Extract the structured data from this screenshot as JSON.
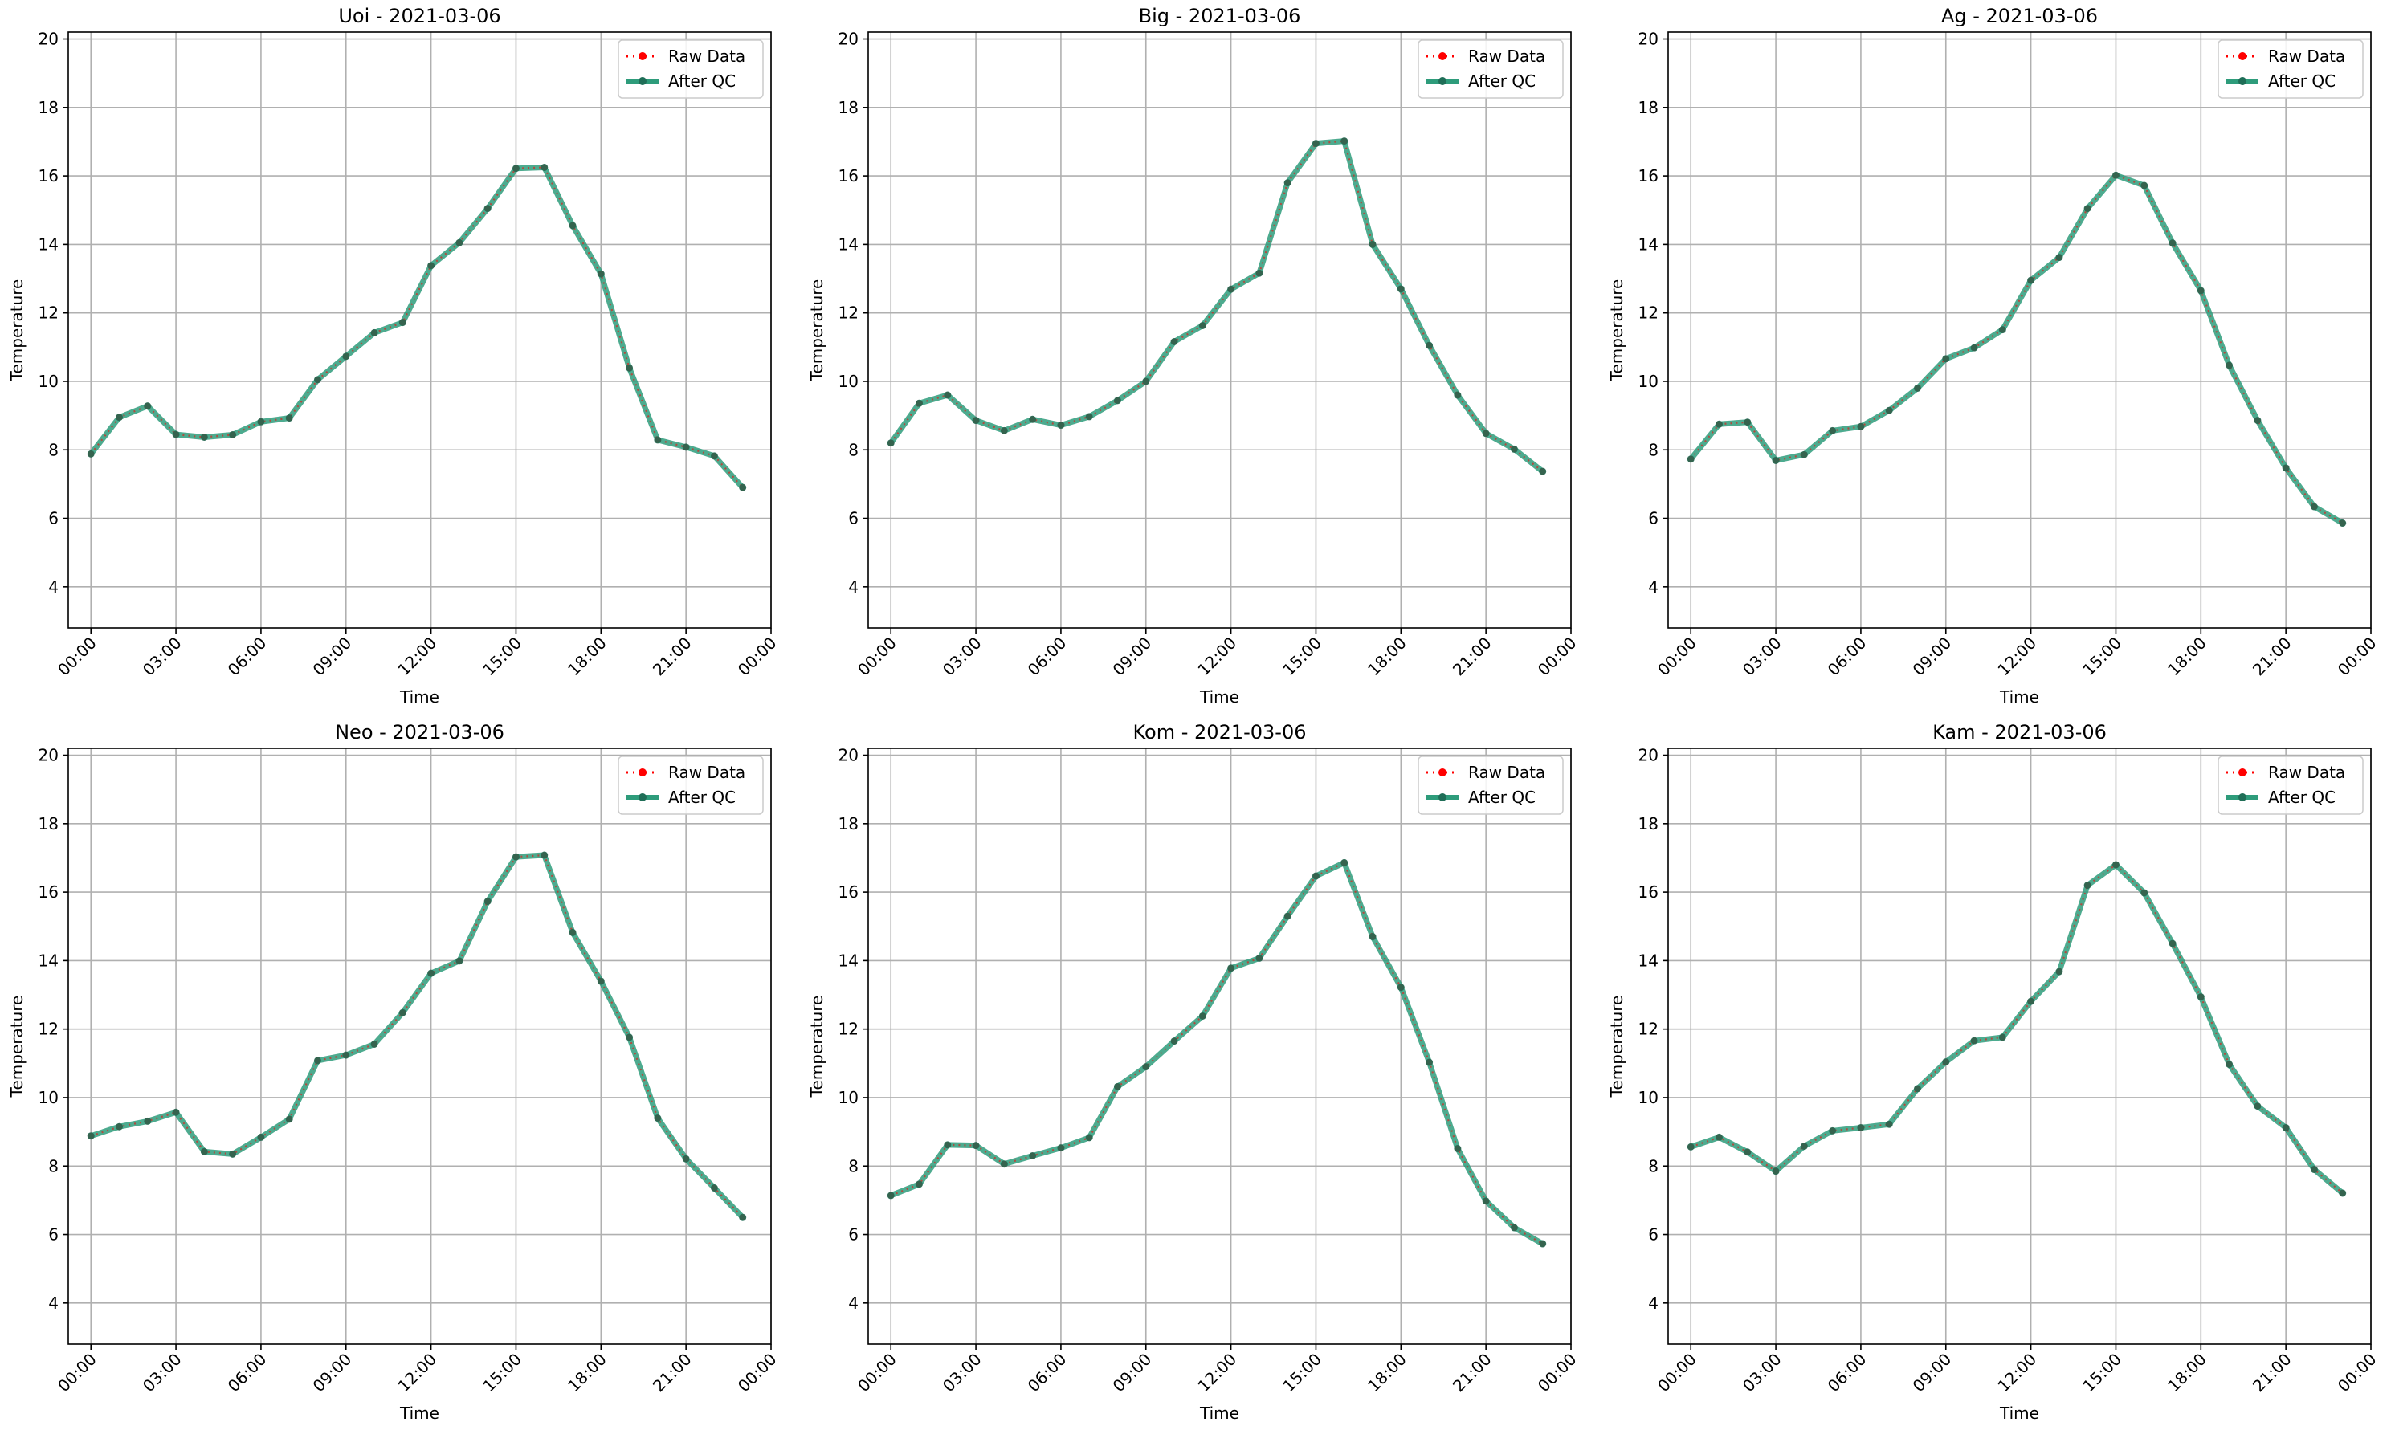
{
  "figure": {
    "xlabel": "Time",
    "ylabel": "Temperature",
    "xlim": [
      -0.8,
      24.0
    ],
    "ylim": [
      2.8,
      20.2
    ],
    "xtick_positions": [
      0,
      3,
      6,
      9,
      12,
      15,
      18,
      21,
      24
    ],
    "xtick_labels": [
      "00:00",
      "03:00",
      "06:00",
      "09:00",
      "12:00",
      "15:00",
      "18:00",
      "21:00",
      "00:00"
    ],
    "yticks": [
      4,
      6,
      8,
      10,
      12,
      14,
      16,
      18,
      20
    ],
    "grid": true,
    "legend_placement": "top-right",
    "legend": [
      {
        "label": "Raw Data",
        "color": "#ff0000",
        "style": "dotted-with-markers"
      },
      {
        "label": "After QC",
        "color": "#2e9c7b",
        "style": "solid-with-markers"
      }
    ]
  },
  "chart_data": [
    {
      "type": "line",
      "title": "Uoi - 2021-03-06",
      "x": [
        0,
        1,
        2,
        3,
        4,
        5,
        6,
        7,
        8,
        9,
        10,
        11,
        12,
        13,
        14,
        15,
        16,
        17,
        18,
        19,
        20,
        21,
        22,
        23
      ],
      "series": [
        {
          "name": "Raw Data",
          "values": [
            7.88,
            8.95,
            9.28,
            8.45,
            8.37,
            8.44,
            8.82,
            8.93,
            10.05,
            10.73,
            11.42,
            11.72,
            13.38,
            14.05,
            15.05,
            16.22,
            16.25,
            14.55,
            13.14,
            10.39,
            8.29,
            8.08,
            7.82,
            6.9
          ]
        },
        {
          "name": "After QC",
          "values": [
            7.88,
            8.95,
            9.28,
            8.45,
            8.37,
            8.44,
            8.82,
            8.93,
            10.05,
            10.73,
            11.42,
            11.72,
            13.38,
            14.05,
            15.05,
            16.22,
            16.25,
            14.55,
            13.14,
            10.39,
            8.29,
            8.08,
            7.82,
            6.9
          ]
        }
      ]
    },
    {
      "type": "line",
      "title": "Big - 2021-03-06",
      "x": [
        0,
        1,
        2,
        3,
        4,
        5,
        6,
        7,
        8,
        9,
        10,
        11,
        12,
        13,
        14,
        15,
        16,
        17,
        18,
        19,
        20,
        21,
        22,
        23
      ],
      "series": [
        {
          "name": "Raw Data",
          "values": [
            8.2,
            9.36,
            9.6,
            8.86,
            8.56,
            8.89,
            8.72,
            8.97,
            9.44,
            10.0,
            11.16,
            11.63,
            12.69,
            13.16,
            15.8,
            16.95,
            17.02,
            14.0,
            12.7,
            11.05,
            9.6,
            8.48,
            8.02,
            7.37
          ]
        },
        {
          "name": "After QC",
          "values": [
            8.2,
            9.36,
            9.6,
            8.86,
            8.56,
            8.89,
            8.72,
            8.97,
            9.44,
            10.0,
            11.16,
            11.63,
            12.69,
            13.16,
            15.8,
            16.95,
            17.02,
            14.0,
            12.7,
            11.05,
            9.6,
            8.48,
            8.02,
            7.37
          ]
        }
      ]
    },
    {
      "type": "line",
      "title": "Ag - 2021-03-06",
      "x": [
        0,
        1,
        2,
        3,
        4,
        5,
        6,
        7,
        8,
        9,
        10,
        11,
        12,
        13,
        14,
        15,
        16,
        17,
        18,
        19,
        20,
        21,
        22,
        23
      ],
      "series": [
        {
          "name": "Raw Data",
          "values": [
            7.73,
            8.75,
            8.81,
            7.69,
            7.86,
            8.56,
            8.68,
            9.15,
            9.8,
            10.66,
            10.98,
            11.51,
            12.95,
            13.62,
            15.05,
            16.02,
            15.72,
            14.04,
            12.65,
            10.47,
            8.86,
            7.47,
            6.34,
            5.86
          ]
        },
        {
          "name": "After QC",
          "values": [
            7.73,
            8.75,
            8.81,
            7.69,
            7.86,
            8.56,
            8.68,
            9.15,
            9.8,
            10.66,
            10.98,
            11.51,
            12.95,
            13.62,
            15.05,
            16.02,
            15.72,
            14.04,
            12.65,
            10.47,
            8.86,
            7.47,
            6.34,
            5.86
          ]
        }
      ]
    },
    {
      "type": "line",
      "title": "Neo - 2021-03-06",
      "x": [
        0,
        1,
        2,
        3,
        4,
        5,
        6,
        7,
        8,
        9,
        10,
        11,
        12,
        13,
        14,
        15,
        16,
        17,
        18,
        19,
        20,
        21,
        22,
        23
      ],
      "series": [
        {
          "name": "Raw Data",
          "values": [
            8.88,
            9.15,
            9.31,
            9.57,
            8.42,
            8.35,
            8.84,
            9.37,
            11.08,
            11.24,
            11.56,
            12.48,
            13.63,
            13.99,
            15.73,
            17.03,
            17.08,
            14.82,
            13.4,
            11.76,
            9.4,
            8.21,
            7.36,
            6.5
          ]
        },
        {
          "name": "After QC",
          "values": [
            8.88,
            9.15,
            9.31,
            9.57,
            8.42,
            8.35,
            8.84,
            9.37,
            11.08,
            11.24,
            11.56,
            12.48,
            13.63,
            13.99,
            15.73,
            17.03,
            17.08,
            14.82,
            13.4,
            11.76,
            9.4,
            8.21,
            7.36,
            6.5
          ]
        }
      ]
    },
    {
      "type": "line",
      "title": "Kom - 2021-03-06",
      "x": [
        0,
        1,
        2,
        3,
        4,
        5,
        6,
        7,
        8,
        9,
        10,
        11,
        12,
        13,
        14,
        15,
        16,
        17,
        18,
        19,
        20,
        21,
        22,
        23
      ],
      "series": [
        {
          "name": "Raw Data",
          "values": [
            7.14,
            7.47,
            8.62,
            8.6,
            8.06,
            8.3,
            8.53,
            8.83,
            10.32,
            10.9,
            11.65,
            12.38,
            13.78,
            14.07,
            15.3,
            16.47,
            16.86,
            14.7,
            13.22,
            11.03,
            8.51,
            6.98,
            6.2,
            5.73
          ]
        },
        {
          "name": "After QC",
          "values": [
            7.14,
            7.47,
            8.62,
            8.6,
            8.06,
            8.3,
            8.53,
            8.83,
            10.32,
            10.9,
            11.65,
            12.38,
            13.78,
            14.07,
            15.3,
            16.47,
            16.86,
            14.7,
            13.22,
            11.03,
            8.51,
            6.98,
            6.2,
            5.73
          ]
        }
      ]
    },
    {
      "type": "line",
      "title": "Kam - 2021-03-06",
      "x": [
        0,
        1,
        2,
        3,
        4,
        5,
        6,
        7,
        8,
        9,
        10,
        11,
        12,
        13,
        14,
        15,
        16,
        17,
        18,
        19,
        20,
        21,
        22,
        23
      ],
      "series": [
        {
          "name": "Raw Data",
          "values": [
            8.56,
            8.84,
            8.41,
            7.85,
            8.58,
            9.03,
            9.12,
            9.22,
            10.26,
            11.04,
            11.66,
            11.76,
            12.81,
            13.68,
            16.2,
            16.8,
            15.98,
            14.5,
            12.94,
            10.97,
            9.75,
            9.12,
            7.9,
            7.21
          ]
        },
        {
          "name": "After QC",
          "values": [
            8.56,
            8.84,
            8.41,
            7.85,
            8.58,
            9.03,
            9.12,
            9.22,
            10.26,
            11.04,
            11.66,
            11.76,
            12.81,
            13.68,
            16.2,
            16.8,
            15.98,
            14.5,
            12.94,
            10.97,
            9.75,
            9.12,
            7.9,
            7.21
          ]
        }
      ]
    }
  ]
}
